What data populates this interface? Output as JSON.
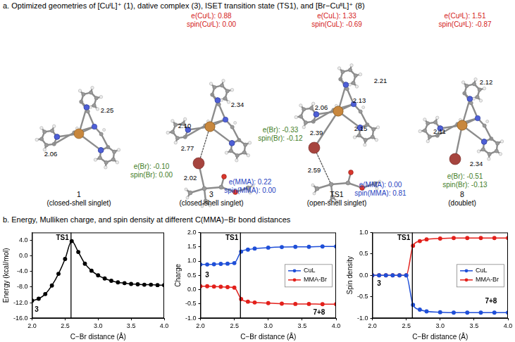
{
  "panel_a": {
    "title": "a. Optimized geometries of [CuᴵL]⁺ (1), dative complex (3), ISET transition state (TS1), and [Br−CuᴵᴵL]⁺ (8)",
    "structures": [
      {
        "label": "1",
        "state": "(closed-shell singlet)",
        "bond_labels": [
          "2.06",
          "2.25"
        ],
        "annotations": []
      },
      {
        "label": "3",
        "state": "(closed-shell singlet)",
        "bond_labels": [
          "2.10",
          "2.34",
          "2.77",
          "2.02"
        ],
        "annotations": [
          {
            "lines": [
              "e(CuᴵL): 0.88",
              "spin(CuᴵL): 0.00"
            ],
            "color": "#d42020"
          },
          {
            "lines": [
              "e(Br): -0.10",
              "spin(Br): 0.00"
            ],
            "color": "#3f7d1f"
          },
          {
            "lines": [
              "e(MMA): 0.22",
              "spin(MMA): 0.00"
            ],
            "color": "#1f3fbf"
          }
        ]
      },
      {
        "label": "TS1",
        "state": "(open-shell singlet)",
        "bond_labels": [
          "2.13",
          "2.21",
          "2.06",
          "2.15",
          "2.39",
          "2.59"
        ],
        "annotations": [
          {
            "lines": [
              "e(CuL): 1.33",
              "spin(CuL): -0.69"
            ],
            "color": "#d42020"
          },
          {
            "lines": [
              "e(Br): -0.33",
              "spin(Br): -0.12"
            ],
            "color": "#3f7d1f"
          },
          {
            "lines": [
              "e(MMA): 0.00",
              "spin(MMA): 0.81"
            ],
            "color": "#1f3fbf"
          }
        ]
      },
      {
        "label": "8",
        "state": "(doublet)",
        "bond_labels": [
          "2.12",
          "2.11",
          "2.34"
        ],
        "annotations": [
          {
            "lines": [
              "e(CuᴵᴵL): 1.51",
              "spin(CuᴵᴵL): -0.87"
            ],
            "color": "#d42020"
          },
          {
            "lines": [
              "e(Br): -0.51",
              "spin(Br): -0.13"
            ],
            "color": "#3f7d1f"
          }
        ]
      }
    ]
  },
  "panel_b": {
    "title": "b. Energy, Mulliken charge, and spin density at different C(MMA)−Br bond distances"
  },
  "chart_data": [
    {
      "type": "line",
      "x_label": "C−Br distance (Å)",
      "y_label": "Energy (kcal/mol)",
      "x": [
        2.0,
        2.1,
        2.2,
        2.3,
        2.4,
        2.5,
        2.6,
        2.7,
        2.8,
        2.9,
        3.0,
        3.1,
        3.2,
        3.3,
        3.4,
        3.5,
        3.6,
        3.7,
        3.8,
        3.9,
        4.0
      ],
      "values": [
        -11.5,
        -11.0,
        -9.8,
        -7.6,
        -4.6,
        -0.8,
        3.8,
        1.0,
        -2.0,
        -3.8,
        -5.0,
        -5.8,
        -6.4,
        -6.8,
        -7.0,
        -7.2,
        -7.3,
        -7.4,
        -7.4,
        -7.5,
        -7.5
      ],
      "color": "#000000",
      "marker": "circle",
      "line_style": "solid",
      "xlim": [
        2.0,
        4.0
      ],
      "xticks": [
        {
          "value": 2,
          "label": "2.0"
        },
        2.5,
        {
          "value": 3,
          "label": "3.0"
        },
        3.5,
        {
          "value": 4,
          "label": "4.0"
        }
      ],
      "ylim": [
        -16,
        6
      ],
      "yticks": [
        {
          "value": -16,
          "label": "-16.0"
        },
        {
          "value": -12,
          "label": "-12.0"
        },
        {
          "value": -8,
          "label": "-8.0"
        },
        {
          "value": -4,
          "label": "-4.0"
        },
        {
          "value": 0,
          "label": "0.0"
        },
        {
          "value": 4,
          "label": "4.0"
        }
      ],
      "grid": false,
      "vlines": [
        {
          "x": 2.59,
          "label": "TS1"
        }
      ],
      "annotations": [
        {
          "text": "3",
          "x": 2.07,
          "y": -13.9
        }
      ]
    },
    {
      "type": "line",
      "x_label": "C−Br distance (Å)",
      "y_label": "Charge",
      "x": [
        2.0,
        2.1,
        2.2,
        2.3,
        2.4,
        2.5,
        2.6,
        2.7,
        2.8,
        3.0,
        3.2,
        3.4,
        3.6,
        3.8,
        4.0
      ],
      "series": [
        {
          "name": "CuL",
          "color": "#1f4fd8",
          "marker": "circle",
          "line_style": "solid",
          "values": [
            0.88,
            0.88,
            0.89,
            0.9,
            0.91,
            0.93,
            1.33,
            1.4,
            1.44,
            1.47,
            1.49,
            1.5,
            1.5,
            1.51,
            1.51
          ]
        },
        {
          "name": "MMA-Br",
          "color": "#e3201b",
          "marker": "circle",
          "line_style": "solid",
          "values": [
            0.12,
            0.12,
            0.11,
            0.1,
            0.09,
            0.07,
            -0.33,
            -0.42,
            -0.45,
            -0.47,
            -0.49,
            -0.5,
            -0.5,
            -0.51,
            -0.51
          ]
        }
      ],
      "xlim": [
        2.0,
        4.0
      ],
      "xticks": [
        {
          "value": 2,
          "label": "2.0"
        },
        2.5,
        {
          "value": 3,
          "label": "3.0"
        },
        3.5,
        {
          "value": 4,
          "label": "4.0"
        }
      ],
      "ylim": [
        -1,
        2
      ],
      "yticks": [
        {
          "value": -1,
          "label": "-1.0"
        },
        -0.5,
        {
          "value": 0,
          "label": "0.0"
        },
        0.5,
        {
          "value": 1,
          "label": "1.0"
        },
        1.5,
        {
          "value": 2,
          "label": "2.0"
        }
      ],
      "grid": false,
      "legend": "right",
      "vlines": [
        {
          "x": 2.59,
          "label": "TS1"
        }
      ],
      "annotations": [
        {
          "text": "3",
          "x": 2.1,
          "y": 0.5
        },
        {
          "text": "7+8",
          "x": 3.75,
          "y": -0.8
        }
      ]
    },
    {
      "type": "line",
      "x_label": "C−Br distance (Å)",
      "y_label": "Spin density",
      "x": [
        2.0,
        2.1,
        2.2,
        2.3,
        2.4,
        2.5,
        2.6,
        2.7,
        2.8,
        3.0,
        3.2,
        3.4,
        3.6,
        3.8,
        4.0
      ],
      "series": [
        {
          "name": "CuL",
          "color": "#1f4fd8",
          "marker": "circle",
          "line_style": "solid",
          "values": [
            0.0,
            0.0,
            0.0,
            0.0,
            0.0,
            0.0,
            -0.69,
            -0.8,
            -0.84,
            -0.86,
            -0.87,
            -0.87,
            -0.87,
            -0.87,
            -0.87
          ]
        },
        {
          "name": "MMA-Br",
          "color": "#e3201b",
          "marker": "circle",
          "line_style": "solid",
          "values": [
            0.0,
            0.0,
            0.0,
            0.0,
            0.0,
            0.0,
            0.69,
            0.8,
            0.84,
            0.86,
            0.87,
            0.87,
            0.87,
            0.87,
            0.87
          ]
        }
      ],
      "xlim": [
        2.0,
        4.0
      ],
      "xticks": [
        {
          "value": 2,
          "label": "2.0"
        },
        2.5,
        {
          "value": 3,
          "label": "3.0"
        },
        3.5,
        {
          "value": 4,
          "label": "4.0"
        }
      ],
      "ylim": [
        -1,
        1
      ],
      "yticks": [
        {
          "value": -1,
          "label": "-1.0"
        },
        -0.5,
        {
          "value": 0,
          "label": "0.0"
        },
        0.5,
        {
          "value": 1,
          "label": "1.0"
        }
      ],
      "grid": false,
      "legend": "right",
      "vlines": [
        {
          "x": 2.59,
          "label": "TS1"
        }
      ],
      "annotations": [
        {
          "text": "3",
          "x": 2.1,
          "y": -0.2
        },
        {
          "text": "7+8",
          "x": 3.75,
          "y": -0.6
        }
      ]
    }
  ]
}
